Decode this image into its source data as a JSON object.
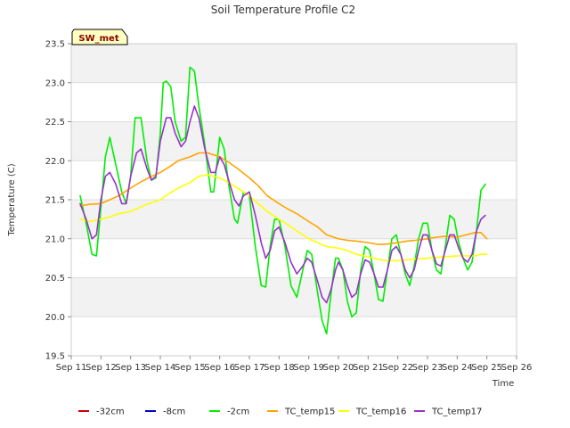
{
  "chart_data": {
    "type": "line",
    "title": "Soil Temperature Profile C2",
    "xlabel": "Time",
    "ylabel": "Temperature (C)",
    "annotation": "SW_met",
    "xlim": [
      11,
      26
    ],
    "ylim": [
      19.5,
      23.5
    ],
    "x_ticks": [
      11,
      12,
      13,
      14,
      15,
      16,
      17,
      18,
      19,
      20,
      21,
      22,
      23,
      24,
      25,
      26
    ],
    "x_tick_labels": [
      "Sep 11",
      "Sep 12",
      "Sep 13",
      "Sep 14",
      "Sep 15",
      "Sep 16",
      "Sep 17",
      "Sep 18",
      "Sep 19",
      "Sep 20",
      "Sep 21",
      "Sep 22",
      "Sep 23",
      "Sep 24",
      "Sep 25",
      "Sep 26"
    ],
    "y_ticks": [
      19.5,
      20.0,
      20.5,
      21.0,
      21.5,
      22.0,
      22.5,
      23.0,
      23.5
    ],
    "y_tick_labels": [
      "19.5",
      "20.0",
      "20.5",
      "21.0",
      "21.5",
      "22.0",
      "22.5",
      "23.0",
      "23.5"
    ],
    "series": [
      {
        "name": "-32cm",
        "color": "#cc0000",
        "points": []
      },
      {
        "name": "-8cm",
        "color": "#0000cc",
        "points": []
      },
      {
        "name": "-2cm",
        "color": "#00ee00",
        "points": [
          [
            11.3,
            21.55
          ],
          [
            11.5,
            21.2
          ],
          [
            11.7,
            20.8
          ],
          [
            11.85,
            20.78
          ],
          [
            12.0,
            21.4
          ],
          [
            12.15,
            22.05
          ],
          [
            12.3,
            22.3
          ],
          [
            12.5,
            21.95
          ],
          [
            12.7,
            21.6
          ],
          [
            12.85,
            21.45
          ],
          [
            13.0,
            21.8
          ],
          [
            13.15,
            22.55
          ],
          [
            13.35,
            22.55
          ],
          [
            13.55,
            22.0
          ],
          [
            13.7,
            21.75
          ],
          [
            13.85,
            21.78
          ],
          [
            14.0,
            22.35
          ],
          [
            14.1,
            23.0
          ],
          [
            14.2,
            23.02
          ],
          [
            14.35,
            22.95
          ],
          [
            14.5,
            22.5
          ],
          [
            14.7,
            22.25
          ],
          [
            14.85,
            22.3
          ],
          [
            15.0,
            23.2
          ],
          [
            15.15,
            23.15
          ],
          [
            15.3,
            22.7
          ],
          [
            15.5,
            22.2
          ],
          [
            15.7,
            21.6
          ],
          [
            15.8,
            21.6
          ],
          [
            16.0,
            22.3
          ],
          [
            16.15,
            22.15
          ],
          [
            16.3,
            21.7
          ],
          [
            16.5,
            21.25
          ],
          [
            16.6,
            21.2
          ],
          [
            16.8,
            21.6
          ],
          [
            17.0,
            21.55
          ],
          [
            17.2,
            20.9
          ],
          [
            17.4,
            20.4
          ],
          [
            17.55,
            20.38
          ],
          [
            17.7,
            20.9
          ],
          [
            17.85,
            21.25
          ],
          [
            18.0,
            21.25
          ],
          [
            18.2,
            20.9
          ],
          [
            18.4,
            20.4
          ],
          [
            18.6,
            20.25
          ],
          [
            18.8,
            20.6
          ],
          [
            18.95,
            20.85
          ],
          [
            19.1,
            20.8
          ],
          [
            19.3,
            20.3
          ],
          [
            19.45,
            19.95
          ],
          [
            19.6,
            19.78
          ],
          [
            19.75,
            20.3
          ],
          [
            19.9,
            20.75
          ],
          [
            20.0,
            20.75
          ],
          [
            20.15,
            20.6
          ],
          [
            20.3,
            20.2
          ],
          [
            20.45,
            20.0
          ],
          [
            20.6,
            20.05
          ],
          [
            20.75,
            20.6
          ],
          [
            20.9,
            20.9
          ],
          [
            21.05,
            20.85
          ],
          [
            21.2,
            20.55
          ],
          [
            21.35,
            20.22
          ],
          [
            21.5,
            20.2
          ],
          [
            21.65,
            20.6
          ],
          [
            21.8,
            21.0
          ],
          [
            21.95,
            21.05
          ],
          [
            22.1,
            20.8
          ],
          [
            22.25,
            20.55
          ],
          [
            22.4,
            20.4
          ],
          [
            22.55,
            20.65
          ],
          [
            22.7,
            21.0
          ],
          [
            22.85,
            21.2
          ],
          [
            23.0,
            21.2
          ],
          [
            23.15,
            20.85
          ],
          [
            23.3,
            20.6
          ],
          [
            23.45,
            20.55
          ],
          [
            23.6,
            20.9
          ],
          [
            23.75,
            21.3
          ],
          [
            23.9,
            21.25
          ],
          [
            24.05,
            20.95
          ],
          [
            24.2,
            20.75
          ],
          [
            24.35,
            20.6
          ],
          [
            24.5,
            20.7
          ],
          [
            24.65,
            21.1
          ],
          [
            24.8,
            21.62
          ],
          [
            24.95,
            21.7
          ]
        ]
      },
      {
        "name": "TC_temp15",
        "color": "#ffa500",
        "points": [
          [
            11.3,
            21.42
          ],
          [
            11.6,
            21.44
          ],
          [
            12.0,
            21.45
          ],
          [
            12.3,
            21.5
          ],
          [
            12.6,
            21.55
          ],
          [
            13.0,
            21.65
          ],
          [
            13.3,
            21.72
          ],
          [
            13.6,
            21.78
          ],
          [
            14.0,
            21.85
          ],
          [
            14.3,
            21.92
          ],
          [
            14.6,
            22.0
          ],
          [
            15.0,
            22.05
          ],
          [
            15.3,
            22.1
          ],
          [
            15.6,
            22.1
          ],
          [
            16.0,
            22.05
          ],
          [
            16.3,
            21.98
          ],
          [
            16.6,
            21.9
          ],
          [
            17.0,
            21.78
          ],
          [
            17.3,
            21.68
          ],
          [
            17.6,
            21.55
          ],
          [
            18.0,
            21.45
          ],
          [
            18.3,
            21.38
          ],
          [
            18.6,
            21.32
          ],
          [
            19.0,
            21.22
          ],
          [
            19.3,
            21.15
          ],
          [
            19.6,
            21.05
          ],
          [
            20.0,
            21.0
          ],
          [
            20.3,
            20.98
          ],
          [
            20.6,
            20.97
          ],
          [
            21.0,
            20.95
          ],
          [
            21.3,
            20.93
          ],
          [
            21.6,
            20.93
          ],
          [
            22.0,
            20.95
          ],
          [
            22.3,
            20.97
          ],
          [
            22.6,
            20.98
          ],
          [
            23.0,
            21.0
          ],
          [
            23.3,
            21.02
          ],
          [
            23.6,
            21.03
          ],
          [
            24.0,
            21.02
          ],
          [
            24.3,
            21.05
          ],
          [
            24.6,
            21.08
          ],
          [
            24.8,
            21.08
          ],
          [
            25.0,
            21.0
          ]
        ]
      },
      {
        "name": "TC_temp16",
        "color": "#ffff00",
        "points": [
          [
            11.3,
            21.25
          ],
          [
            11.6,
            21.22
          ],
          [
            12.0,
            21.25
          ],
          [
            12.3,
            21.28
          ],
          [
            12.6,
            21.32
          ],
          [
            13.0,
            21.35
          ],
          [
            13.3,
            21.4
          ],
          [
            13.6,
            21.45
          ],
          [
            14.0,
            21.5
          ],
          [
            14.3,
            21.58
          ],
          [
            14.6,
            21.65
          ],
          [
            15.0,
            21.72
          ],
          [
            15.3,
            21.8
          ],
          [
            15.6,
            21.82
          ],
          [
            16.0,
            21.78
          ],
          [
            16.3,
            21.72
          ],
          [
            16.6,
            21.65
          ],
          [
            17.0,
            21.55
          ],
          [
            17.3,
            21.45
          ],
          [
            17.6,
            21.35
          ],
          [
            18.0,
            21.25
          ],
          [
            18.3,
            21.18
          ],
          [
            18.6,
            21.1
          ],
          [
            19.0,
            21.0
          ],
          [
            19.3,
            20.95
          ],
          [
            19.6,
            20.9
          ],
          [
            20.0,
            20.88
          ],
          [
            20.3,
            20.85
          ],
          [
            20.6,
            20.8
          ],
          [
            21.0,
            20.77
          ],
          [
            21.3,
            20.74
          ],
          [
            21.6,
            20.72
          ],
          [
            22.0,
            20.72
          ],
          [
            22.3,
            20.73
          ],
          [
            22.6,
            20.74
          ],
          [
            23.0,
            20.75
          ],
          [
            23.3,
            20.76
          ],
          [
            23.6,
            20.77
          ],
          [
            24.0,
            20.78
          ],
          [
            24.3,
            20.78
          ],
          [
            24.6,
            20.78
          ],
          [
            24.8,
            20.8
          ],
          [
            25.0,
            20.8
          ]
        ]
      },
      {
        "name": "TC_temp17",
        "color": "#9932cc",
        "points": [
          [
            11.3,
            21.45
          ],
          [
            11.5,
            21.25
          ],
          [
            11.7,
            21.0
          ],
          [
            11.85,
            21.05
          ],
          [
            12.0,
            21.5
          ],
          [
            12.15,
            21.8
          ],
          [
            12.3,
            21.85
          ],
          [
            12.5,
            21.7
          ],
          [
            12.7,
            21.45
          ],
          [
            12.85,
            21.45
          ],
          [
            13.0,
            21.8
          ],
          [
            13.2,
            22.1
          ],
          [
            13.35,
            22.15
          ],
          [
            13.55,
            21.9
          ],
          [
            13.7,
            21.75
          ],
          [
            13.85,
            21.8
          ],
          [
            14.0,
            22.25
          ],
          [
            14.2,
            22.55
          ],
          [
            14.35,
            22.55
          ],
          [
            14.5,
            22.35
          ],
          [
            14.7,
            22.18
          ],
          [
            14.85,
            22.25
          ],
          [
            15.0,
            22.5
          ],
          [
            15.15,
            22.7
          ],
          [
            15.3,
            22.55
          ],
          [
            15.5,
            22.15
          ],
          [
            15.7,
            21.85
          ],
          [
            15.85,
            21.85
          ],
          [
            16.0,
            22.05
          ],
          [
            16.15,
            21.95
          ],
          [
            16.3,
            21.75
          ],
          [
            16.5,
            21.5
          ],
          [
            16.65,
            21.42
          ],
          [
            16.8,
            21.55
          ],
          [
            17.0,
            21.6
          ],
          [
            17.2,
            21.3
          ],
          [
            17.4,
            20.95
          ],
          [
            17.55,
            20.75
          ],
          [
            17.7,
            20.85
          ],
          [
            17.85,
            21.1
          ],
          [
            18.0,
            21.15
          ],
          [
            18.2,
            20.95
          ],
          [
            18.4,
            20.7
          ],
          [
            18.6,
            20.55
          ],
          [
            18.8,
            20.65
          ],
          [
            18.95,
            20.75
          ],
          [
            19.1,
            20.7
          ],
          [
            19.3,
            20.45
          ],
          [
            19.45,
            20.25
          ],
          [
            19.6,
            20.18
          ],
          [
            19.75,
            20.35
          ],
          [
            19.9,
            20.6
          ],
          [
            20.0,
            20.7
          ],
          [
            20.15,
            20.6
          ],
          [
            20.3,
            20.4
          ],
          [
            20.45,
            20.25
          ],
          [
            20.6,
            20.3
          ],
          [
            20.75,
            20.55
          ],
          [
            20.9,
            20.73
          ],
          [
            21.05,
            20.7
          ],
          [
            21.2,
            20.55
          ],
          [
            21.35,
            20.38
          ],
          [
            21.5,
            20.38
          ],
          [
            21.65,
            20.6
          ],
          [
            21.8,
            20.85
          ],
          [
            21.95,
            20.9
          ],
          [
            22.1,
            20.8
          ],
          [
            22.25,
            20.6
          ],
          [
            22.4,
            20.5
          ],
          [
            22.55,
            20.6
          ],
          [
            22.7,
            20.85
          ],
          [
            22.85,
            21.05
          ],
          [
            23.0,
            21.05
          ],
          [
            23.15,
            20.85
          ],
          [
            23.3,
            20.68
          ],
          [
            23.45,
            20.65
          ],
          [
            23.6,
            20.85
          ],
          [
            23.75,
            21.05
          ],
          [
            23.9,
            21.05
          ],
          [
            24.05,
            20.88
          ],
          [
            24.2,
            20.75
          ],
          [
            24.35,
            20.7
          ],
          [
            24.5,
            20.8
          ],
          [
            24.65,
            21.1
          ],
          [
            24.8,
            21.25
          ],
          [
            24.95,
            21.3
          ]
        ]
      }
    ]
  }
}
